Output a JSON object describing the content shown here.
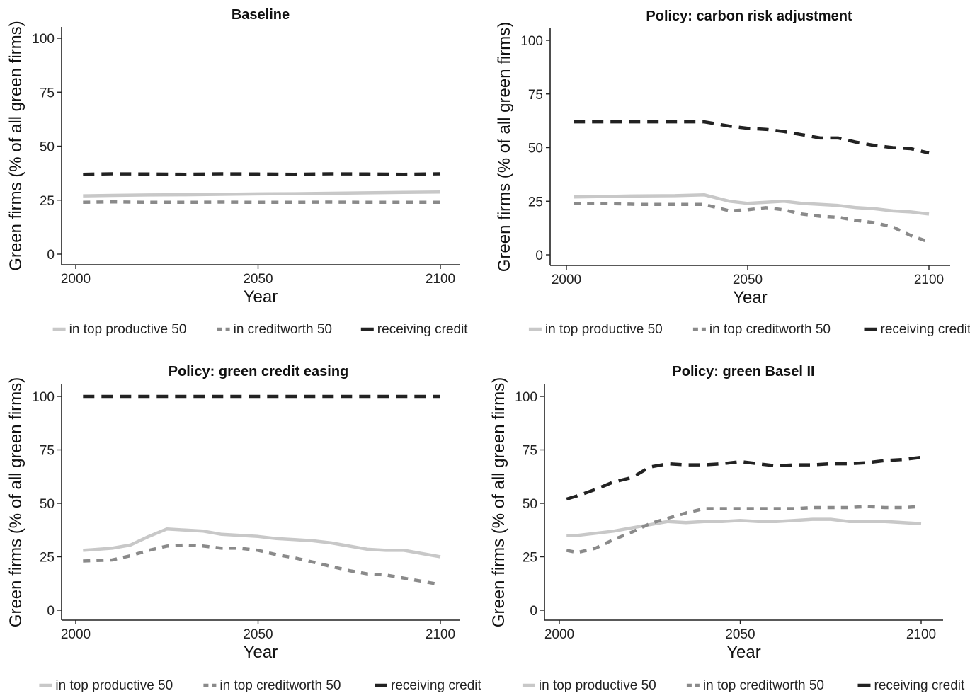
{
  "chart_data": [
    {
      "type": "line",
      "title": "Baseline",
      "xlabel": "Year",
      "ylabel": "Green firms (% of all green firms)",
      "xlim": [
        2002,
        2100
      ],
      "ylim": [
        0,
        100
      ],
      "xticks": [
        2000,
        2050,
        2100
      ],
      "yticks": [
        0,
        25,
        50,
        75,
        100
      ],
      "x": [
        2002,
        2010,
        2020,
        2030,
        2040,
        2050,
        2060,
        2070,
        2080,
        2090,
        2100
      ],
      "series": [
        {
          "name": "in top productive 50",
          "color": "#c8c8c8",
          "style": "solid",
          "values": [
            27,
            27.2,
            27.4,
            27.5,
            27.7,
            27.9,
            28,
            28.2,
            28.4,
            28.6,
            28.8
          ]
        },
        {
          "name": "in creditworth 50",
          "color": "#8a8a8a",
          "style": "dashed",
          "values": [
            24,
            24.2,
            24,
            24,
            24.1,
            24,
            24,
            24.1,
            24,
            24,
            24
          ]
        },
        {
          "name": "receiving credit",
          "color": "#222222",
          "style": "dashed",
          "values": [
            37,
            37.2,
            37.1,
            37,
            37.2,
            37.1,
            37,
            37.2,
            37.1,
            37,
            37.2
          ]
        }
      ],
      "legend": "bottom"
    },
    {
      "type": "line",
      "title": "Policy: carbon risk adjustment",
      "xlabel": "Year",
      "ylabel": "Green firms (% of all green firms)",
      "xlim": [
        2002,
        2100
      ],
      "ylim": [
        0,
        100
      ],
      "xticks": [
        2000,
        2050,
        2100
      ],
      "yticks": [
        0,
        25,
        50,
        75,
        100
      ],
      "x": [
        2002,
        2010,
        2020,
        2030,
        2038,
        2045,
        2050,
        2055,
        2060,
        2065,
        2070,
        2075,
        2080,
        2085,
        2090,
        2095,
        2100
      ],
      "series": [
        {
          "name": "in top productive 50",
          "color": "#c8c8c8",
          "style": "solid",
          "values": [
            27,
            27.2,
            27.5,
            27.6,
            28,
            25,
            24,
            24.5,
            25,
            24,
            23.5,
            23,
            22,
            21.5,
            20.5,
            20,
            19
          ]
        },
        {
          "name": "in top creditworth 50",
          "color": "#8a8a8a",
          "style": "dashed",
          "values": [
            24,
            24,
            23.5,
            23.5,
            23.5,
            20.5,
            21,
            22,
            21,
            19,
            18,
            17.5,
            16,
            15,
            13,
            9,
            6
          ]
        },
        {
          "name": "receiving credit",
          "color": "#222222",
          "style": "dashed",
          "values": [
            62,
            62,
            62,
            62,
            62,
            60,
            59,
            58.5,
            57.5,
            56,
            54.5,
            54.5,
            52.5,
            51,
            50,
            49.5,
            47.5
          ]
        }
      ],
      "legend": "bottom"
    },
    {
      "type": "line",
      "title": "Policy: green credit easing",
      "xlabel": "Year",
      "ylabel": "Green firms (% of all green firms)",
      "xlim": [
        2002,
        2100
      ],
      "ylim": [
        0,
        100
      ],
      "xticks": [
        2000,
        2050,
        2100
      ],
      "yticks": [
        0,
        25,
        50,
        75,
        100
      ],
      "x": [
        2002,
        2010,
        2015,
        2020,
        2025,
        2030,
        2035,
        2040,
        2045,
        2050,
        2055,
        2060,
        2065,
        2070,
        2075,
        2080,
        2085,
        2090,
        2095,
        2100
      ],
      "series": [
        {
          "name": "in top productive 50",
          "color": "#c8c8c8",
          "style": "solid",
          "values": [
            28,
            29,
            30.5,
            34.5,
            38,
            37.5,
            37,
            35.5,
            35,
            34.5,
            33.5,
            33,
            32.5,
            31.5,
            30,
            28.5,
            28,
            28,
            26.5,
            25
          ]
        },
        {
          "name": "in top creditworth 50",
          "color": "#8a8a8a",
          "style": "dashed",
          "values": [
            23,
            23.5,
            25.5,
            28,
            30,
            30.5,
            30,
            29,
            29,
            28,
            26,
            24.5,
            22.5,
            20.5,
            18.5,
            17,
            16.5,
            15,
            13.5,
            12
          ]
        },
        {
          "name": "receiving credit",
          "color": "#222222",
          "style": "dashed",
          "values": [
            100,
            100,
            100,
            100,
            100,
            100,
            100,
            100,
            100,
            100,
            100,
            100,
            100,
            100,
            100,
            100,
            100,
            100,
            100,
            100
          ]
        }
      ],
      "legend": "bottom"
    },
    {
      "type": "line",
      "title": "Policy: green Basel II",
      "xlabel": "Year",
      "ylabel": "Green firms (% of all green firms)",
      "xlim": [
        2002,
        2100
      ],
      "ylim": [
        0,
        100
      ],
      "xticks": [
        2000,
        2050,
        2100
      ],
      "yticks": [
        0,
        25,
        50,
        75,
        100
      ],
      "x": [
        2002,
        2005,
        2010,
        2015,
        2020,
        2025,
        2030,
        2035,
        2040,
        2045,
        2050,
        2055,
        2060,
        2065,
        2070,
        2075,
        2080,
        2085,
        2090,
        2095,
        2100
      ],
      "series": [
        {
          "name": "in top productive 50",
          "color": "#c8c8c8",
          "style": "solid",
          "values": [
            35,
            35,
            36,
            37,
            38.5,
            40,
            41.5,
            41,
            41.5,
            41.5,
            42,
            41.5,
            41.5,
            42,
            42.5,
            42.5,
            41.5,
            41.5,
            41.5,
            41,
            40.5
          ]
        },
        {
          "name": "in top creditworth 50",
          "color": "#8a8a8a",
          "style": "dashed",
          "values": [
            28,
            27,
            29,
            33,
            36.5,
            40.5,
            43,
            45.5,
            47.5,
            47.5,
            47.5,
            47.5,
            47.5,
            47.5,
            48,
            48,
            48,
            48.5,
            48,
            48,
            48.5
          ]
        },
        {
          "name": "receiving credit",
          "color": "#222222",
          "style": "dashed",
          "values": [
            52,
            53.5,
            56.5,
            60,
            62,
            67,
            68.5,
            68,
            68,
            68.5,
            69.5,
            68.5,
            67.5,
            68,
            68,
            68.5,
            68.5,
            69,
            70,
            70.5,
            71.5
          ]
        }
      ],
      "legend": "bottom"
    }
  ]
}
